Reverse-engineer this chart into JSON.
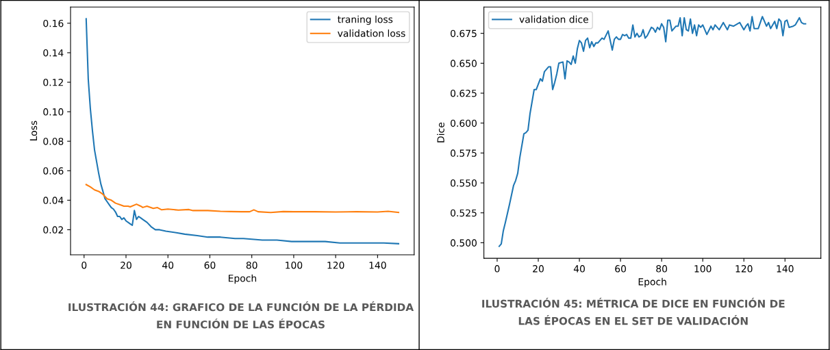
{
  "chart_data": [
    {
      "type": "line",
      "xlabel": "Epoch",
      "ylabel": "Loss",
      "xlim": [
        -6.45,
        157.45
      ],
      "ylim": [
        0.003,
        0.171
      ],
      "xticks": [
        0,
        20,
        40,
        60,
        80,
        100,
        120,
        140
      ],
      "yticks": [
        0.02,
        0.04,
        0.06,
        0.08,
        {
          "value": 0.1,
          "label": "0.10"
        },
        0.12,
        0.14,
        0.16
      ],
      "grid": false,
      "legend": "top right",
      "marker": "none",
      "line_style": "solid",
      "annotations": [
        "ILUSTRACIÓN 44: GRAFICO DE LA FUNCIÓN DE LA PÉRDIDA\nEN FUNCIÓN DE LAS ÉPOCAS"
      ],
      "series": [
        {
          "name": "traning loss",
          "color": "#1f77b4",
          "x": [
            1,
            2,
            3,
            4,
            5,
            6,
            7,
            8,
            9,
            10,
            11,
            12,
            13,
            14,
            15,
            16,
            17,
            18,
            19,
            20,
            21,
            22,
            23,
            24,
            25,
            26,
            27,
            28,
            30,
            32,
            34,
            36,
            39,
            44,
            48,
            54,
            59,
            65,
            72,
            76,
            85,
            92,
            99,
            107,
            115,
            122,
            127,
            135,
            143,
            150
          ],
          "values": [
            0.163,
            0.122,
            0.102,
            0.087,
            0.074,
            0.066,
            0.058,
            0.051,
            0.046,
            0.041,
            0.039,
            0.037,
            0.035,
            0.034,
            0.032,
            0.029,
            0.029,
            0.027,
            0.028,
            0.026,
            0.025,
            0.024,
            0.023,
            0.033,
            0.027,
            0.029,
            0.028,
            0.027,
            0.025,
            0.022,
            0.02,
            0.02,
            0.019,
            0.018,
            0.017,
            0.016,
            0.015,
            0.015,
            0.014,
            0.014,
            0.013,
            0.013,
            0.012,
            0.012,
            0.012,
            0.011,
            0.011,
            0.011,
            0.011,
            0.0105
          ]
        },
        {
          "name": "validation loss",
          "color": "#ff7f0e",
          "x": [
            1,
            3,
            5,
            7,
            9,
            11,
            13,
            15,
            17,
            19,
            21,
            22,
            25,
            27,
            28,
            30,
            33,
            35,
            37,
            40,
            45,
            50,
            52,
            59,
            65,
            70,
            75,
            79,
            81,
            83,
            89,
            95,
            100,
            110,
            120,
            130,
            140,
            145,
            150
          ],
          "values": [
            0.0506,
            0.049,
            0.047,
            0.046,
            0.044,
            0.041,
            0.04,
            0.038,
            0.037,
            0.036,
            0.036,
            0.0355,
            0.0373,
            0.036,
            0.0351,
            0.036,
            0.0345,
            0.035,
            0.0335,
            0.034,
            0.0333,
            0.0337,
            0.033,
            0.033,
            0.0325,
            0.0323,
            0.0322,
            0.0322,
            0.0335,
            0.0322,
            0.0317,
            0.0323,
            0.0322,
            0.0322,
            0.032,
            0.0322,
            0.032,
            0.0325,
            0.0317
          ]
        }
      ]
    },
    {
      "type": "line",
      "xlabel": "Epoch",
      "ylabel": "Dice",
      "xlim": [
        -6.45,
        157.45
      ],
      "ylim": [
        0.487,
        0.697
      ],
      "xticks": [
        0,
        20,
        40,
        60,
        80,
        100,
        120,
        140
      ],
      "yticks": [
        {
          "value": 0.5,
          "label": "0.500"
        },
        0.525,
        {
          "value": 0.55,
          "label": "0.550"
        },
        0.575,
        {
          "value": 0.6,
          "label": "0.600"
        },
        0.625,
        {
          "value": 0.65,
          "label": "0.650"
        },
        0.675
      ],
      "grid": false,
      "legend": "top left",
      "marker": "none",
      "line_style": "solid",
      "annotations": [
        "ILUSTRACIÓN 45: MÉTRICA DE DICE EN FUNCIÓN DE\nLAS ÉPOCAS EN EL SET DE VALIDACIÓN"
      ],
      "series": [
        {
          "name": "validation dice",
          "color": "#1f77b4",
          "x": [
            1,
            2,
            3,
            4,
            6,
            8,
            9,
            10,
            11,
            13,
            14,
            15,
            16,
            18,
            19,
            21,
            22,
            23,
            25,
            26,
            27,
            28,
            29,
            30,
            32,
            33,
            34,
            35,
            36,
            37,
            38,
            39,
            40,
            41,
            42,
            43,
            44,
            45,
            46,
            47,
            48,
            49,
            51,
            52,
            54,
            56,
            57,
            58,
            59,
            60,
            61,
            62,
            63,
            64,
            65,
            66,
            67,
            68,
            69,
            70,
            71,
            72,
            73,
            75,
            76,
            77,
            78,
            79,
            80,
            81,
            82,
            83,
            84,
            85,
            87,
            88,
            89,
            90,
            91,
            92,
            93,
            94,
            95,
            96,
            97,
            98,
            99,
            100,
            102,
            104,
            105,
            106,
            108,
            110,
            112,
            113,
            115,
            118,
            120,
            121,
            122,
            123,
            124,
            125,
            127,
            129,
            131,
            132,
            133,
            135,
            136,
            137,
            138,
            139,
            140,
            141,
            142,
            144,
            145,
            146,
            147,
            148,
            149,
            150
          ],
          "values": [
            0.497,
            0.499,
            0.51,
            0.517,
            0.532,
            0.548,
            0.552,
            0.558,
            0.571,
            0.591,
            0.592,
            0.594,
            0.608,
            0.628,
            0.628,
            0.637,
            0.635,
            0.643,
            0.647,
            0.647,
            0.628,
            0.634,
            0.641,
            0.65,
            0.651,
            0.637,
            0.652,
            0.651,
            0.649,
            0.656,
            0.65,
            0.662,
            0.669,
            0.667,
            0.66,
            0.669,
            0.671,
            0.663,
            0.668,
            0.664,
            0.667,
            0.667,
            0.671,
            0.67,
            0.677,
            0.661,
            0.67,
            0.672,
            0.67,
            0.67,
            0.674,
            0.673,
            0.674,
            0.671,
            0.671,
            0.682,
            0.672,
            0.675,
            0.672,
            0.673,
            0.678,
            0.671,
            0.673,
            0.68,
            0.679,
            0.676,
            0.68,
            0.678,
            0.683,
            0.68,
            0.668,
            0.686,
            0.686,
            0.677,
            0.681,
            0.681,
            0.688,
            0.673,
            0.688,
            0.678,
            0.677,
            0.687,
            0.675,
            0.682,
            0.673,
            0.682,
            0.68,
            0.682,
            0.674,
            0.681,
            0.678,
            0.682,
            0.678,
            0.684,
            0.678,
            0.682,
            0.681,
            0.684,
            0.678,
            0.681,
            0.683,
            0.677,
            0.689,
            0.679,
            0.679,
            0.689,
            0.681,
            0.684,
            0.679,
            0.685,
            0.679,
            0.687,
            0.685,
            0.673,
            0.685,
            0.686,
            0.68,
            0.681,
            0.682,
            0.685,
            0.688,
            0.684,
            0.683,
            0.683
          ]
        }
      ]
    }
  ]
}
